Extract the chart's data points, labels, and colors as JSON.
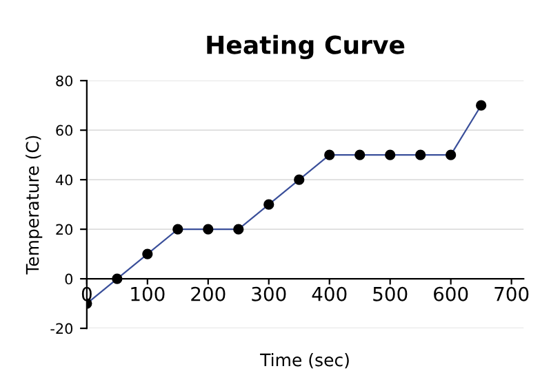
{
  "chart_data": {
    "type": "line",
    "title": "Heating Curve",
    "xlabel": "Time (sec)",
    "ylabel": "Temperature (C)",
    "x": [
      0,
      50,
      100,
      150,
      200,
      250,
      300,
      350,
      400,
      450,
      500,
      550,
      600,
      650
    ],
    "series": [
      {
        "color": "#3a4f9a",
        "values": [
          -10,
          0,
          10,
          20,
          20,
          20,
          30,
          40,
          50,
          50,
          50,
          50,
          50,
          70
        ]
      }
    ],
    "marker": "circle",
    "xlim": [
      0,
      720
    ],
    "ylim": [
      -20,
      80
    ],
    "xticks": [
      0,
      100,
      200,
      300,
      400,
      500,
      600,
      700
    ],
    "yticks": [
      -20,
      0,
      20,
      40,
      60,
      80
    ],
    "grid": "y",
    "legend": false
  }
}
